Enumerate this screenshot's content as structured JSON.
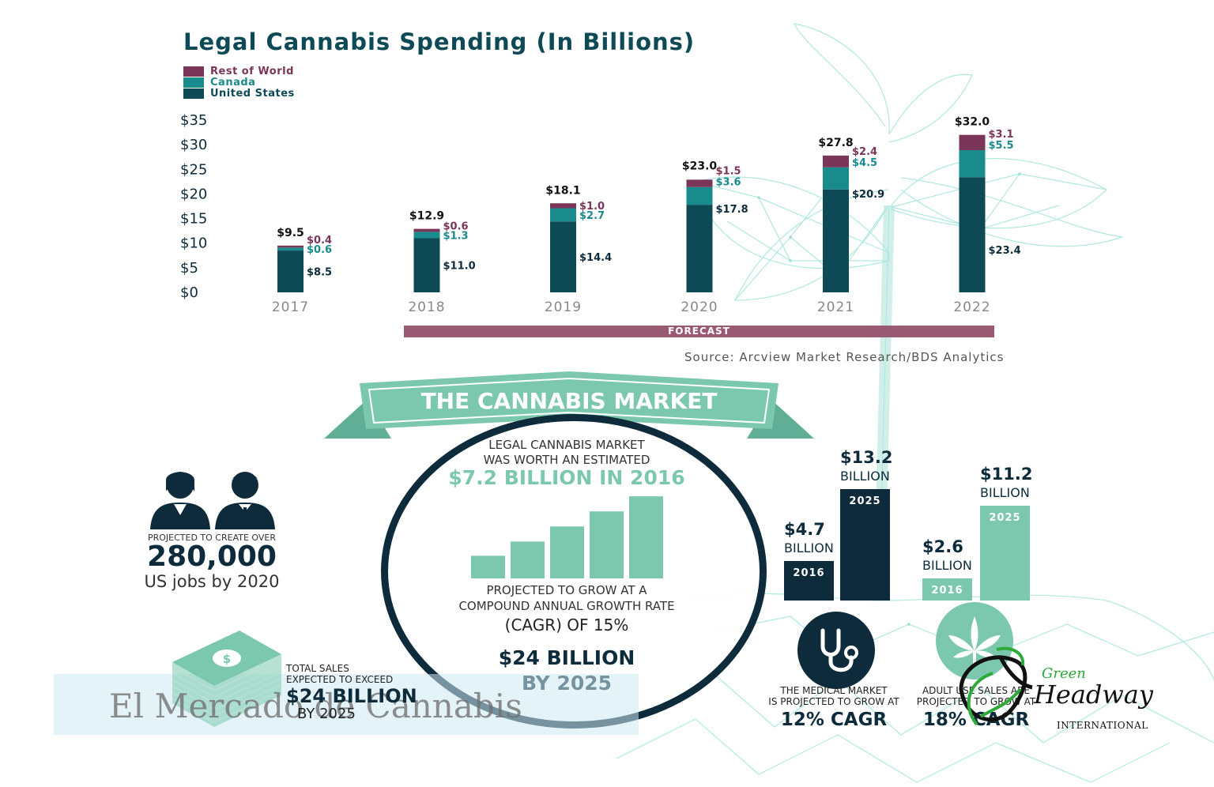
{
  "colors": {
    "us": "#0d4a56",
    "canada": "#1a8b8c",
    "rest_of_world": "#7a3558",
    "forecast": "#9b5a73",
    "mint": "#7cc8ae",
    "navy": "#0d2b3a"
  },
  "chart_data": [
    {
      "type": "bar",
      "stacked": true,
      "title": "Legal Cannabis Spending (In Billions)",
      "categories": [
        "2017",
        "2018",
        "2019",
        "2020",
        "2021",
        "2022"
      ],
      "series": [
        {
          "name": "United States",
          "values": [
            8.5,
            11.0,
            14.4,
            17.8,
            20.9,
            23.4
          ],
          "labels": [
            "$8.5",
            "$11.0",
            "$14.4",
            "$17.8",
            "$20.9",
            "$23.4"
          ]
        },
        {
          "name": "Canada",
          "values": [
            0.6,
            1.3,
            2.7,
            3.6,
            4.5,
            5.5
          ],
          "labels": [
            "$0.6",
            "$1.3",
            "$2.7",
            "$3.6",
            "$4.5",
            "$5.5"
          ]
        },
        {
          "name": "Rest of World",
          "values": [
            0.4,
            0.6,
            1.0,
            1.5,
            2.4,
            3.1
          ],
          "labels": [
            "$0.4",
            "$0.6",
            "$1.0",
            "$1.5",
            "$2.4",
            "$3.1"
          ]
        }
      ],
      "totals": [
        9.5,
        12.9,
        18.1,
        23.0,
        27.8,
        32.0
      ],
      "total_labels": [
        "$9.5",
        "$12.9",
        "$18.1",
        "$23.0",
        "$27.8",
        "$32.0"
      ],
      "ylim": [
        0,
        35
      ],
      "yticks": [
        0,
        5,
        10,
        15,
        20,
        25,
        30,
        35
      ],
      "ytick_labels": [
        "$0",
        "$5",
        "$10",
        "$15",
        "$20",
        "$25",
        "$30",
        "$35"
      ],
      "legend_position": "top-left",
      "grid": false,
      "forecast_label": "FORECAST",
      "forecast_range": [
        "2018",
        "2022"
      ],
      "source": "Source: Arcview Market Research/BDS Analytics"
    },
    {
      "type": "bar",
      "title": "",
      "categories": [
        "2016",
        "2025"
      ],
      "series": [
        {
          "name": "",
          "values": [
            4.7,
            13.2
          ],
          "labels": [
            "$4.7",
            "$13.2"
          ],
          "unit": "BILLION",
          "cagr": "12% CAGR"
        },
        {
          "name": "",
          "values": [
            2.6,
            11.2
          ],
          "labels": [
            "$2.6",
            "$11.2"
          ],
          "unit": "BILLION",
          "cagr": "18% CAGR"
        }
      ]
    }
  ],
  "banner": {
    "title": "THE CANNABIS MARKET"
  },
  "market": {
    "line1": "LEGAL CANNABIS  MARKET",
    "line2": "WAS WORTH AN  ESTIMATED",
    "line3": "$7.2 BILLION IN 2016",
    "line4": "PROJECTED TO GROW AT A",
    "line5": "COMPOUND ANNUAL GROWTH  RATE",
    "line6": "(CAGR) OF 15%",
    "line7": "$24 BILLION",
    "line8": "BY 2025",
    "mini_bars": [
      0.27,
      0.44,
      0.62,
      0.8,
      0.98
    ]
  },
  "jobs": {
    "line1": "PROJECTED TO CREATE OVER",
    "number": "280,000",
    "line2": "US jobs by 2020"
  },
  "sales": {
    "line1a": "TOTAL SALES",
    "line1b": "EXPECTED TO EXCEED",
    "amount": "$24 BILLION",
    "by": "BY 2025"
  },
  "watermark": "El Mercado de Cannabis",
  "medical": {
    "line1": "THE MEDICAL MARKET",
    "line2": "IS PROJECTED TO GROW AT",
    "cagr": "12% CAGR",
    "icon": "stethoscope-icon"
  },
  "adult": {
    "line1": "ADULT USE SALES ARE",
    "line2": "PROJECTED TO GROW AT",
    "cagr": "18% CAGR",
    "icon": "cannabis-leaf-icon"
  },
  "logo": {
    "green": "Green",
    "headway": "Headway",
    "international": "INTERNATIONAL"
  }
}
